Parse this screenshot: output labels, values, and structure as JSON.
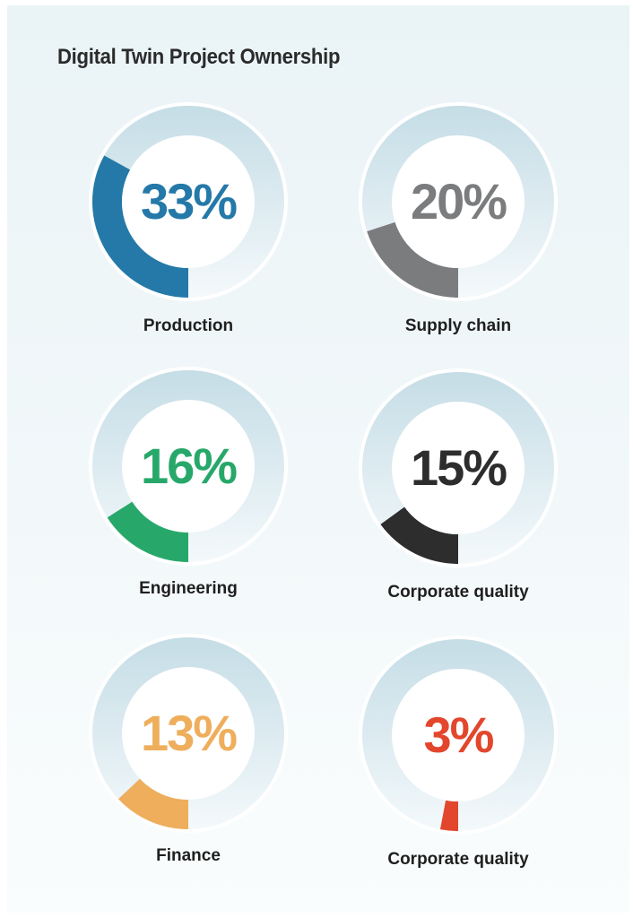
{
  "title": "Digital Twin Project Ownership",
  "chart_data": {
    "type": "pie",
    "title": "Digital Twin Project Ownership",
    "unit": "%",
    "items": [
      {
        "label": "Production",
        "value": 33,
        "value_label": "33%",
        "color": "#2479a8"
      },
      {
        "label": "Supply chain",
        "value": 20,
        "value_label": "20%",
        "color": "#7b7c7e"
      },
      {
        "label": "Engineering",
        "value": 16,
        "value_label": "16%",
        "color": "#27a86a"
      },
      {
        "label": "Corporate quality",
        "value": 15,
        "value_label": "15%",
        "color": "#2d2d2d"
      },
      {
        "label": "Finance",
        "value": 13,
        "value_label": "13%",
        "color": "#eeae5c"
      },
      {
        "label": "Corporate quality",
        "value": 3,
        "value_label": "3%",
        "color": "#e2472d"
      }
    ]
  },
  "colors": {
    "ring_top": "#c5dde6",
    "ring_bottom": "#f4f9fb",
    "ring_border": "#ffffff",
    "center_fill": "#ffffff",
    "label_text": "#1f1f1f",
    "title_text": "#2b2b2b"
  }
}
